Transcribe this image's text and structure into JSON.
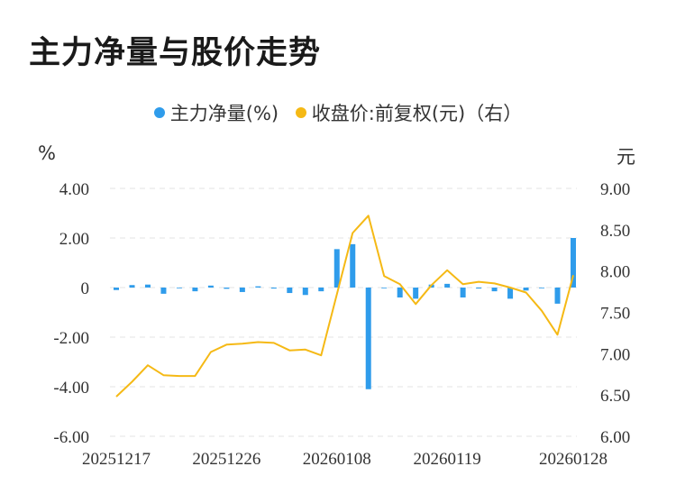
{
  "title": "主力净量与股价走势",
  "chart_data": {
    "type": "bar+line",
    "legend": {
      "placement": "top-center",
      "items": [
        {
          "name": "主力净量(%)",
          "color": "#2f9ceb"
        },
        {
          "name": "收盘价:前复权(元)（右）",
          "color": "#f5b915"
        }
      ]
    },
    "left_axis": {
      "unit": "%",
      "ticks": [
        "4.00",
        "2.00",
        "0",
        "-2.00",
        "-4.00",
        "-6.00"
      ],
      "range": [
        -6,
        4
      ]
    },
    "right_axis": {
      "unit": "元",
      "ticks": [
        "9.00",
        "8.50",
        "8.00",
        "7.50",
        "7.00",
        "6.50",
        "6.00"
      ],
      "range": [
        6,
        9
      ]
    },
    "x_tick_labels": [
      "20251217",
      "20251226",
      "20260108",
      "20260119",
      "20260128"
    ],
    "grid": "horizontal-dashed",
    "series": [
      {
        "name": "主力净量(%)",
        "type": "bar",
        "color": "#2f9ceb",
        "values": [
          -0.1,
          0.1,
          0.12,
          -0.25,
          0.0,
          -0.15,
          0.08,
          -0.05,
          -0.18,
          0.05,
          -0.04,
          -0.22,
          -0.3,
          -0.15,
          1.55,
          1.75,
          -4.1,
          0.0,
          -0.4,
          -0.45,
          0.12,
          0.15,
          -0.4,
          -0.04,
          -0.15,
          -0.45,
          -0.12,
          0.0,
          -0.65,
          2.0
        ]
      },
      {
        "name": "收盘价:前复权(元)（右）",
        "type": "line",
        "color": "#f5b915",
        "values": [
          6.48,
          6.66,
          6.86,
          6.74,
          6.73,
          6.73,
          7.02,
          7.11,
          7.12,
          7.14,
          7.13,
          7.04,
          7.05,
          6.98,
          7.72,
          8.46,
          8.67,
          7.94,
          7.84,
          7.6,
          7.83,
          8.01,
          7.84,
          7.87,
          7.85,
          7.8,
          7.74,
          7.52,
          7.23,
          7.95
        ]
      }
    ]
  }
}
